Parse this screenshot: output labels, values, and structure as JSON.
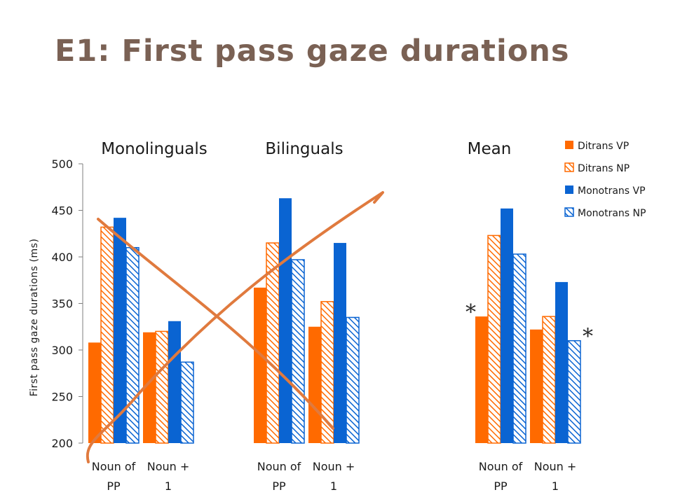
{
  "title": "E1: First pass gaze durations",
  "chart_data": {
    "type": "bar",
    "ylabel": "First pass gaze durations (ms)",
    "ylim": [
      200,
      500
    ],
    "yticks": [
      200,
      250,
      300,
      350,
      400,
      450,
      500
    ],
    "legend_position": "top-right",
    "series": [
      {
        "name": "Ditrans VP",
        "color": "#ff6a00",
        "pattern": "solid"
      },
      {
        "name": "Ditrans NP",
        "color": "#ff6a00",
        "pattern": "hatched"
      },
      {
        "name": "Monotrans VP",
        "color": "#0a64d2",
        "pattern": "solid"
      },
      {
        "name": "Monotrans NP",
        "color": "#0a64d2",
        "pattern": "hatched"
      }
    ],
    "groups": [
      {
        "label": "Monolinguals",
        "categories": [
          {
            "label": [
              "Noun of",
              "PP"
            ],
            "values": [
              308,
              432,
              442,
              410
            ]
          },
          {
            "label": [
              "Noun +",
              "1"
            ],
            "values": [
              319,
              320,
              331,
              287
            ]
          }
        ]
      },
      {
        "label": "Bilinguals",
        "categories": [
          {
            "label": [
              "Noun of",
              "PP"
            ],
            "values": [
              367,
              415,
              463,
              397
            ]
          },
          {
            "label": [
              "Noun +",
              "1"
            ],
            "values": [
              325,
              352,
              415,
              335
            ]
          }
        ]
      },
      {
        "label": "Mean",
        "categories": [
          {
            "label": [
              "Noun of",
              "PP"
            ],
            "values": [
              336,
              423,
              452,
              403
            ]
          },
          {
            "label": [
              "Noun +",
              "1"
            ],
            "values": [
              322,
              336,
              373,
              310
            ]
          }
        ]
      }
    ],
    "annotations": [
      {
        "text": "*",
        "group": 2,
        "category": 0
      },
      {
        "text": "*",
        "group": 2,
        "category": 1
      }
    ]
  }
}
